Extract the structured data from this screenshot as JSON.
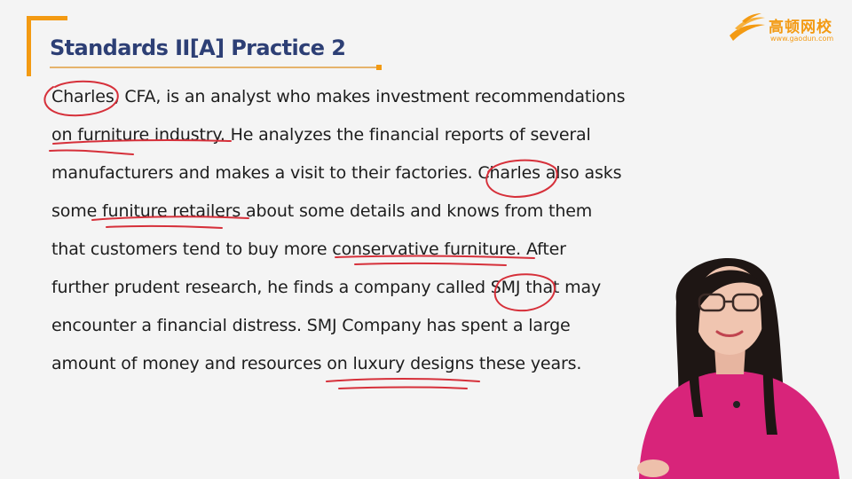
{
  "slide": {
    "title": "Standards II[A] Practice 2",
    "logo": {
      "name": "高顿网校",
      "url": "www.gaodun.com",
      "color": "#f39a12"
    },
    "accent_color": "#f39a12",
    "title_color": "#2d3f75",
    "annotation_color": "#d6303a",
    "paragraph_lines": [
      "Charles, CFA, is an analyst who makes investment recommendations",
      "on furniture industry. He analyzes the financial reports of several",
      "manufacturers and makes a visit to their factories. Charles also asks",
      "some funiture retailers about some details and knows from them",
      "that customers tend to buy more conservative furniture. After",
      "further prudent research, he finds a company called SMJ that may",
      "encounter a financial distress. SMJ Company has spent a large",
      "amount of money and resources on luxury designs these years."
    ]
  }
}
